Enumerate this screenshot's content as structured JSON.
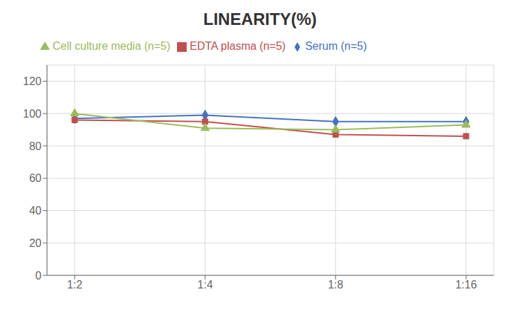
{
  "chart_data": {
    "type": "line",
    "title": "LINEARITY(%)",
    "categories": [
      "1:2",
      "1:4",
      "1:8",
      "1:16"
    ],
    "series": [
      {
        "name": "Serum (n=5)",
        "color": "#4472C4",
        "marker": "diamond",
        "values": [
          97,
          99,
          95,
          95
        ]
      },
      {
        "name": "EDTA plasma (n=5)",
        "color": "#C0504D",
        "marker": "square",
        "values": [
          96,
          95,
          87,
          86
        ]
      },
      {
        "name": "Cell culture media (n=5)",
        "color": "#9BBB59",
        "marker": "triangle",
        "values": [
          100,
          91,
          90,
          93
        ]
      }
    ],
    "ylim": [
      0,
      130
    ],
    "yticks": [
      0,
      20,
      40,
      60,
      80,
      100,
      120
    ],
    "grid": true,
    "legend": "top"
  }
}
